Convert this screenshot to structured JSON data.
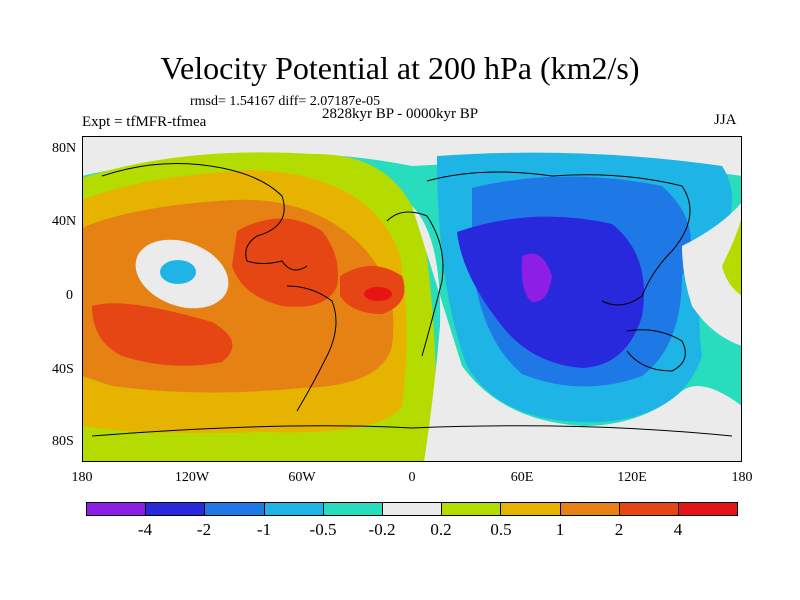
{
  "title": "Velocity Potential at 200 hPa (km2/s)",
  "stats": "rmsd= 1.54167 diff= 2.07187e-05",
  "period": "2828kyr BP - 0000kyr BP",
  "experiment": "Expt = tfMFR-tfmea",
  "season": "JJA",
  "y_ticks": [
    "80N",
    "40N",
    "0",
    "40S",
    "80S"
  ],
  "x_ticks": [
    "180",
    "120W",
    "60W",
    "0",
    "60E",
    "120E",
    "180"
  ],
  "colorbar": {
    "labels": [
      "-4",
      "-2",
      "-1",
      "-0.5",
      "-0.2",
      "0.2",
      "0.5",
      "1",
      "2",
      "4"
    ],
    "colors": [
      "#8c1ee6",
      "#2828dc",
      "#1e78e6",
      "#1eb4e6",
      "#28dcbe",
      "#ebebeb",
      "#b4dc00",
      "#e6b400",
      "#e68214",
      "#e64614",
      "#e61414"
    ]
  },
  "palette": {
    "ocean_bg": "#28dcbe",
    "near_zero": "#ebebeb",
    "pos_light": "#b4dc00",
    "pos_mid": "#e6b400",
    "pos_orange": "#e68214",
    "pos_red": "#e64614",
    "pos_max": "#e61414",
    "neg_cyan": "#1eb4e6",
    "neg_blue": "#1e78e6",
    "neg_dark": "#2828dc",
    "neg_min": "#8c1ee6"
  }
}
